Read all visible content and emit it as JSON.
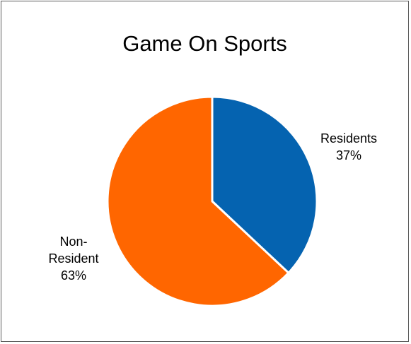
{
  "chart_data": {
    "type": "pie",
    "title": "Game On Sports",
    "slices": [
      {
        "name": "Residents",
        "label_lines": [
          "Residents",
          "37%"
        ],
        "value": 37,
        "color": "#0563B0"
      },
      {
        "name": "Non-Resident",
        "label_lines": [
          "Non-",
          "Resident",
          "63%"
        ],
        "value": 63,
        "color": "#FF6600"
      }
    ],
    "start_angle_deg": 0,
    "direction": "clockwise",
    "slice_border_color": "#FFFFFF",
    "legend": "none",
    "data_labels": "outside"
  }
}
